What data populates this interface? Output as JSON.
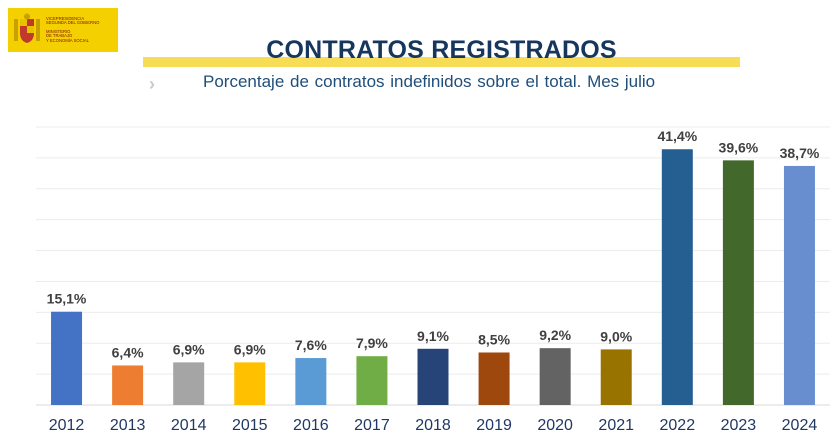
{
  "logo": {
    "line1": "VICEPRESIDENCIA\nSEGUNDA DEL GOBIERNO",
    "line2": "MINISTERIO\nDE TRABAJO\nY ECONOMÍA SOCIAL"
  },
  "header": {
    "title": "CONTRATOS REGISTRADOS",
    "subtitle": "Porcentaje de contratos indefinidos sobre el total. Mes julio",
    "chevron": "›"
  },
  "chart_data": {
    "type": "bar",
    "title": "CONTRATOS REGISTRADOS",
    "subtitle": "Porcentaje de contratos indefinidos sobre el total. Mes julio",
    "xlabel": "",
    "ylabel": "",
    "categories": [
      "2012",
      "2013",
      "2014",
      "2015",
      "2016",
      "2017",
      "2018",
      "2019",
      "2020",
      "2021",
      "2022",
      "2023",
      "2024"
    ],
    "values": [
      15.1,
      6.4,
      6.9,
      6.9,
      7.6,
      7.9,
      9.1,
      8.5,
      9.2,
      9.0,
      41.4,
      39.6,
      38.7
    ],
    "data_labels": [
      "15,1%",
      "6,4%",
      "6,9%",
      "6,9%",
      "7,6%",
      "7,9%",
      "9,1%",
      "8,5%",
      "9,2%",
      "9,0%",
      "41,4%",
      "39,6%",
      "38,7%"
    ],
    "colors": [
      "#4472c4",
      "#ed7d31",
      "#a5a5a5",
      "#ffc000",
      "#5b9bd5",
      "#70ad47",
      "#264478",
      "#9e480e",
      "#636363",
      "#997300",
      "#255e91",
      "#43682b",
      "#698ed0"
    ],
    "ylim": [
      0,
      45
    ],
    "grid": true,
    "legend": "none"
  }
}
